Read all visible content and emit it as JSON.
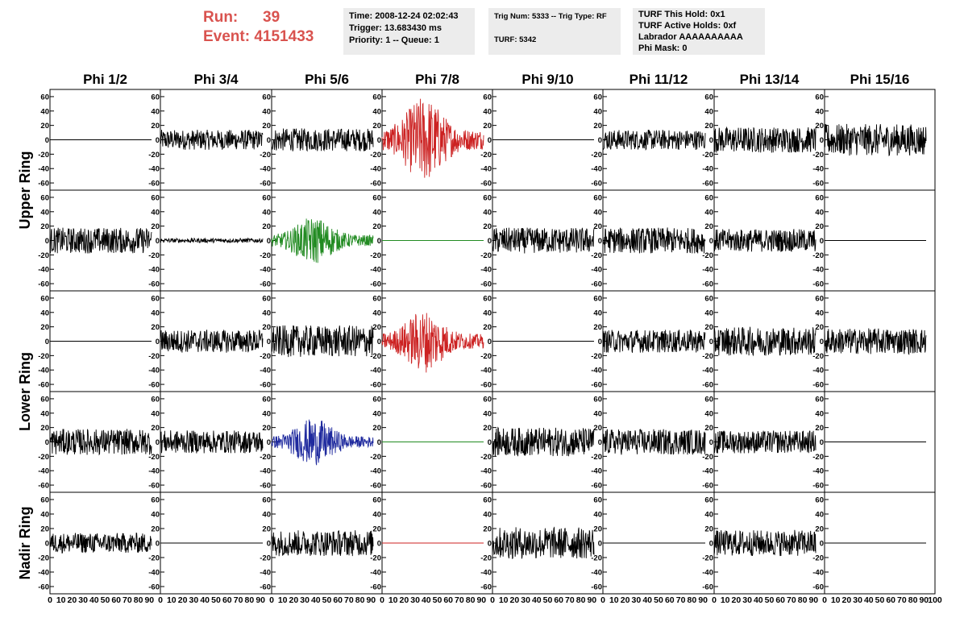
{
  "header": {
    "run_label": "Run:",
    "run_value": "39",
    "event_label": "Event:",
    "event_value": "4151433",
    "accent_color": "#d9534f",
    "box1": [
      "Time: 2008-12-24 02:02:43",
      "Trigger: 13.683430 ms",
      "Priority: 1 -- Queue: 1"
    ],
    "box2": [
      "Trig Num: 5333 -- Trig Type: RF",
      "",
      "TURF: 5342"
    ],
    "box3": [
      "TURF This Hold: 0x1",
      "TURF Active Holds: 0xf",
      "Labrador AAAAAAAAAA",
      "Phi Mask: 0"
    ]
  },
  "chart_data": {
    "type": "line",
    "title": "",
    "columns": [
      "Phi 1/2",
      "Phi 3/4",
      "Phi 5/6",
      "Phi 7/8",
      "Phi 9/10",
      "Phi 11/12",
      "Phi 13/14",
      "Phi 15/16"
    ],
    "row_groups": [
      {
        "label": "Upper Ring",
        "rows": [
          0,
          1
        ]
      },
      {
        "label": "Lower Ring",
        "rows": [
          2,
          3
        ]
      },
      {
        "label": "Nadir Ring",
        "rows": [
          4
        ]
      }
    ],
    "xlim": [
      0,
      100
    ],
    "ylim": [
      -70,
      70
    ],
    "y_ticks": [
      -60,
      -40,
      -20,
      0,
      20,
      40,
      60
    ],
    "x_tick_labels": [
      "0",
      "10",
      "20",
      "30",
      "40",
      "50",
      "60",
      "70",
      "80",
      "90",
      "100"
    ],
    "series_colors": {
      "k": "#000000",
      "r": "#cc2222",
      "g": "#228B22",
      "b": "#1f2a9e"
    },
    "panels": [
      [
        {
          "color": "k",
          "amp": 0,
          "env": "flat"
        },
        {
          "color": "k",
          "amp": 14,
          "env": "flat"
        },
        {
          "color": "k",
          "amp": 16,
          "env": "flat"
        },
        {
          "color": "r",
          "amp": 55,
          "env": "pulse"
        },
        {
          "color": "k",
          "amp": 0,
          "env": "flat"
        },
        {
          "color": "k",
          "amp": 14,
          "env": "flat"
        },
        {
          "color": "k",
          "amp": 18,
          "env": "flat"
        },
        {
          "color": "k",
          "amp": 22,
          "env": "flat"
        }
      ],
      [
        {
          "color": "k",
          "amp": 18,
          "env": "flat"
        },
        {
          "color": "k",
          "amp": 3,
          "env": "flat"
        },
        {
          "color": "g",
          "amp": 30,
          "env": "pulse"
        },
        {
          "color": "g",
          "amp": 0,
          "env": "flat"
        },
        {
          "color": "k",
          "amp": 18,
          "env": "flat"
        },
        {
          "color": "k",
          "amp": 18,
          "env": "flat"
        },
        {
          "color": "k",
          "amp": 16,
          "env": "flat"
        },
        {
          "color": "k",
          "amp": 0,
          "env": "flat"
        }
      ],
      [
        {
          "color": "k",
          "amp": 0,
          "env": "flat"
        },
        {
          "color": "k",
          "amp": 16,
          "env": "flat"
        },
        {
          "color": "k",
          "amp": 22,
          "env": "flat"
        },
        {
          "color": "r",
          "amp": 40,
          "env": "pulse"
        },
        {
          "color": "k",
          "amp": 0,
          "env": "flat"
        },
        {
          "color": "k",
          "amp": 16,
          "env": "flat"
        },
        {
          "color": "k",
          "amp": 20,
          "env": "flat"
        },
        {
          "color": "k",
          "amp": 18,
          "env": "flat"
        }
      ],
      [
        {
          "color": "k",
          "amp": 18,
          "env": "flat"
        },
        {
          "color": "k",
          "amp": 16,
          "env": "flat"
        },
        {
          "color": "b",
          "amp": 30,
          "env": "pulse"
        },
        {
          "color": "g",
          "amp": 0,
          "env": "flat"
        },
        {
          "color": "k",
          "amp": 20,
          "env": "flat"
        },
        {
          "color": "k",
          "amp": 18,
          "env": "flat"
        },
        {
          "color": "k",
          "amp": 16,
          "env": "flat"
        },
        {
          "color": "k",
          "amp": 0,
          "env": "flat"
        }
      ],
      [
        {
          "color": "k",
          "amp": 14,
          "env": "flat"
        },
        {
          "color": "k",
          "amp": 0,
          "env": "flat"
        },
        {
          "color": "k",
          "amp": 18,
          "env": "flat"
        },
        {
          "color": "r",
          "amp": 0,
          "env": "flat"
        },
        {
          "color": "k",
          "amp": 22,
          "env": "flat"
        },
        {
          "color": "k",
          "amp": 0,
          "env": "flat"
        },
        {
          "color": "k",
          "amp": 18,
          "env": "flat"
        },
        {
          "color": "k",
          "amp": 0,
          "env": "flat"
        }
      ]
    ]
  }
}
